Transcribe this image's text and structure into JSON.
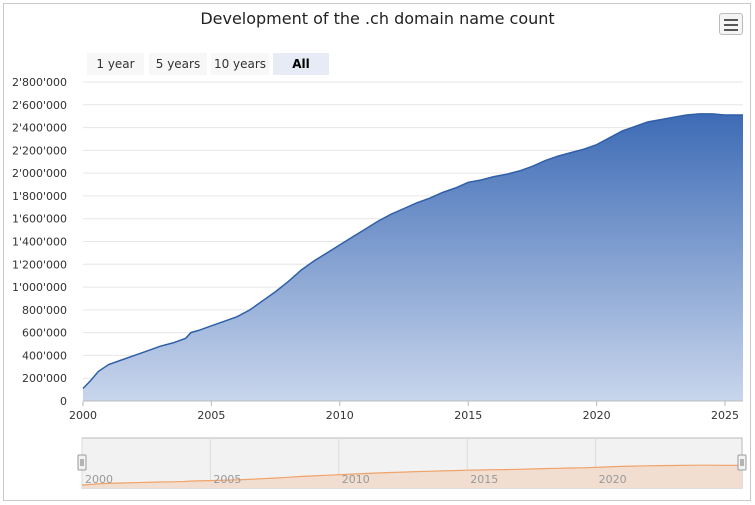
{
  "title": "Development of the .ch domain name count",
  "menu_icon": "hamburger-menu-icon",
  "range_buttons": [
    {
      "label": "1 year",
      "active": false
    },
    {
      "label": "5 years",
      "active": false
    },
    {
      "label": "10 years",
      "active": false
    },
    {
      "label": "All",
      "active": true
    }
  ],
  "colors": {
    "series_line": "#2f5fa8",
    "area_top": "#3d6bb5",
    "area_bottom": "#c9d6ec",
    "navigator_line": "#f0a36a",
    "navigator_fill": "#f1ded0"
  },
  "chart_data": {
    "type": "area",
    "title": "Development of the .ch domain name count",
    "xlabel": "",
    "ylabel": "",
    "x_ticks": [
      "2000",
      "2005",
      "2010",
      "2015",
      "2020",
      "2025"
    ],
    "y_ticks": [
      "0",
      "200'000",
      "400'000",
      "600'000",
      "800'000",
      "1'000'000",
      "1'200'000",
      "1'400'000",
      "1'600'000",
      "1'800'000",
      "2'000'000",
      "2'200'000",
      "2'400'000",
      "2'600'000",
      "2'800'000"
    ],
    "xlim": [
      2000,
      2025.7
    ],
    "ylim": [
      0,
      2800000
    ],
    "grid": true,
    "navigator_ticks": [
      "2000",
      "2005",
      "2010",
      "2015",
      "2020"
    ],
    "series": [
      {
        "x": [
          2000.0,
          2000.3,
          2000.6,
          2001.0,
          2001.5,
          2002.0,
          2002.5,
          2003.0,
          2003.5,
          2004.0,
          2004.2,
          2004.5,
          2005.0,
          2005.5,
          2006.0,
          2006.5,
          2007.0,
          2007.5,
          2008.0,
          2008.5,
          2009.0,
          2009.5,
          2010.0,
          2010.5,
          2011.0,
          2011.5,
          2012.0,
          2012.5,
          2013.0,
          2013.5,
          2014.0,
          2014.5,
          2015.0,
          2015.5,
          2016.0,
          2016.5,
          2017.0,
          2017.5,
          2018.0,
          2018.5,
          2019.0,
          2019.5,
          2020.0,
          2020.5,
          2021.0,
          2021.5,
          2022.0,
          2022.5,
          2023.0,
          2023.5,
          2024.0,
          2024.5,
          2025.0,
          2025.7
        ],
        "values": [
          110000,
          180000,
          260000,
          320000,
          360000,
          400000,
          440000,
          480000,
          510000,
          550000,
          600000,
          620000,
          660000,
          700000,
          740000,
          800000,
          880000,
          960000,
          1050000,
          1150000,
          1230000,
          1300000,
          1370000,
          1440000,
          1510000,
          1580000,
          1640000,
          1690000,
          1740000,
          1780000,
          1830000,
          1870000,
          1920000,
          1940000,
          1970000,
          1990000,
          2020000,
          2060000,
          2110000,
          2150000,
          2180000,
          2210000,
          2250000,
          2310000,
          2370000,
          2410000,
          2450000,
          2470000,
          2490000,
          2510000,
          2520000,
          2520000,
          2510000,
          2510000
        ]
      }
    ]
  }
}
